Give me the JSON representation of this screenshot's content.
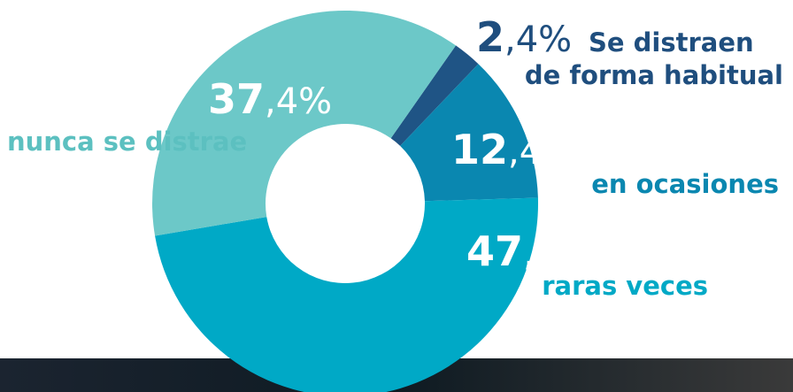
{
  "chart_data": {
    "type": "donut",
    "categories": [
      [
        "Se distraen",
        "de forma habitual"
      ],
      [
        "en ocasiones"
      ],
      [
        "raras veces"
      ],
      [
        "nunca se distrae"
      ]
    ],
    "values": [
      2.4,
      12.4,
      47.8,
      37.4
    ],
    "value_labels": [
      "2,4%",
      "12,4%",
      "47,8%",
      "37,4%"
    ],
    "colors": [
      "#1f5485",
      "#0a87b0",
      "#00a9c6",
      "#6cc8c8"
    ]
  }
}
